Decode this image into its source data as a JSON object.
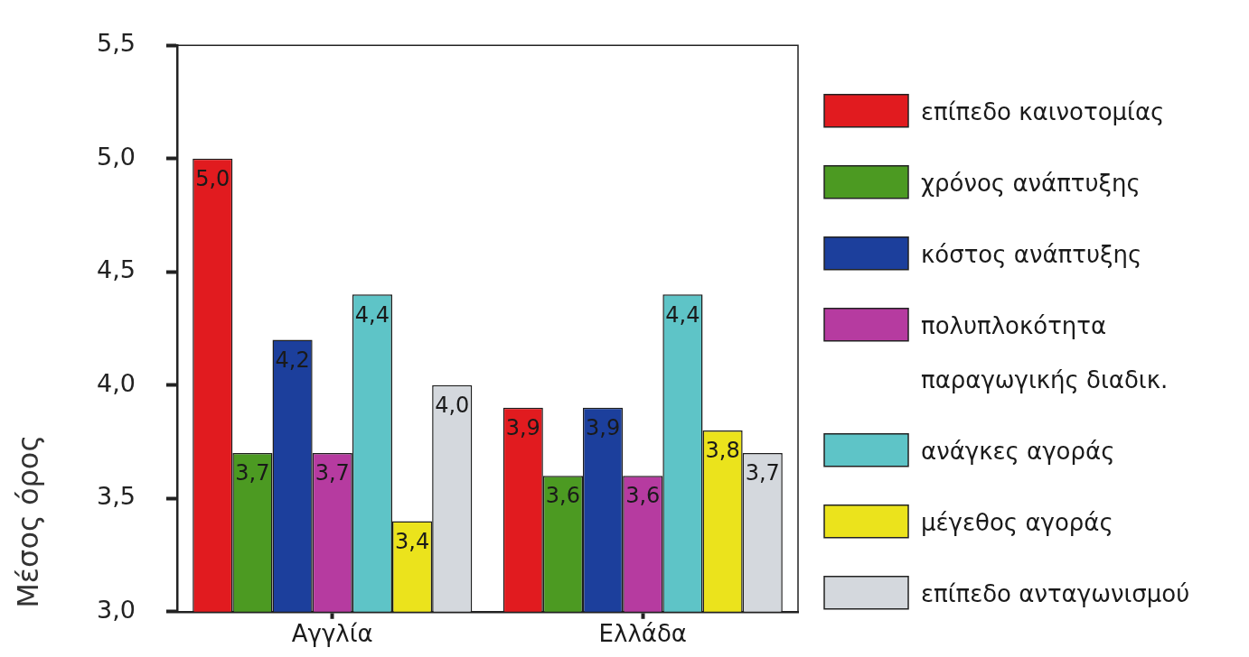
{
  "chart_data": {
    "type": "bar",
    "categories": [
      "Αγγλία",
      "Ελλάδα"
    ],
    "ylabel": "Μέσος όρος",
    "ylim": [
      3,
      5.5
    ],
    "yticks": [
      {
        "value": 3,
        "label": "3,0"
      },
      {
        "value": 3.5,
        "label": "3,5"
      },
      {
        "value": 4,
        "label": "4,0"
      },
      {
        "value": 4.5,
        "label": "4,5"
      },
      {
        "value": 5,
        "label": "5,0"
      },
      {
        "value": 5.5,
        "label": "5,5"
      }
    ],
    "grid": false,
    "legend": "right",
    "series": [
      {
        "name": "επίπεδο καινοτομίας",
        "color": "#e11b1f",
        "values": [
          5,
          3.9
        ],
        "value_labels": [
          "5,0",
          "3,9"
        ]
      },
      {
        "name": "χρόνος ανάπτυξης",
        "color": "#4c9a22",
        "values": [
          3.7,
          3.6
        ],
        "value_labels": [
          "3,7",
          "3,6"
        ]
      },
      {
        "name": "κόστος ανάπτυξης",
        "color": "#1c3f9c",
        "values": [
          4.2,
          3.9
        ],
        "value_labels": [
          "4,2",
          "3,9"
        ]
      },
      {
        "name": "πολυπλοκότητα παραγωγικής διαδικ.",
        "color": "#b63ba0",
        "values": [
          3.7,
          3.6
        ],
        "value_labels": [
          "3,7",
          "3,6"
        ]
      },
      {
        "name": "ανάγκες αγοράς",
        "color": "#5ec4c7",
        "values": [
          4.4,
          4.4
        ],
        "value_labels": [
          "4,4",
          "4,4"
        ]
      },
      {
        "name": "μέγεθος αγοράς",
        "color": "#ebe31c",
        "values": [
          3.4,
          3.8
        ],
        "value_labels": [
          "3,4",
          "3,8"
        ]
      },
      {
        "name": "επίπεδο ανταγωνισμού",
        "color": "#d4d8dd",
        "values": [
          4,
          3.7
        ],
        "value_labels": [
          "4,0",
          "3,7"
        ]
      }
    ]
  }
}
